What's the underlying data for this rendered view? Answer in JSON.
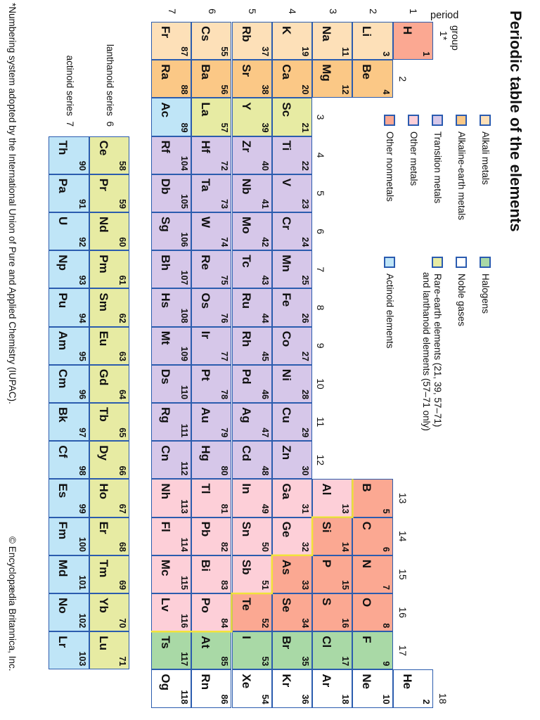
{
  "title": "Periodic table of the elements",
  "colors": {
    "alkali": "#fde0b8",
    "alkaline_earth": "#fbc886",
    "transition": "#d6c7e9",
    "other_metal": "#fdcfd8",
    "other_nonmetal": "#fba892",
    "halogen": "#a9d9a6",
    "noble_gas": "#ffffff",
    "rare_earth": "#e7eba3",
    "actinoid": "#bfe5f7",
    "border": "#2b5cae",
    "metal_line": "#f2e33a"
  },
  "legend": [
    {
      "key": "alkali",
      "label": "Alkali metals"
    },
    {
      "key": "alkaline_earth",
      "label": "Alkaline-earth metals"
    },
    {
      "key": "transition",
      "label": "Transition metals"
    },
    {
      "key": "other_metal",
      "label": "Other metals"
    },
    {
      "key": "other_nonmetal",
      "label": "Other nonmetals"
    },
    {
      "key": "halogen",
      "label": "Halogens"
    },
    {
      "key": "noble_gas",
      "label": "Noble gases"
    },
    {
      "key": "rare_earth",
      "label": "Rare-earth elements (21, 39, 57–71)",
      "label2": "and lanthanoid elements (57–71 only)"
    },
    {
      "key": "actinoid",
      "label": "Actinoid elements"
    }
  ],
  "labels": {
    "period_word": "period",
    "group_word": "group",
    "group1": "1*",
    "periods": [
      "1",
      "2",
      "3",
      "4",
      "5",
      "6",
      "7"
    ],
    "groups": [
      "1*",
      "2",
      "3",
      "4",
      "5",
      "6",
      "7",
      "8",
      "9",
      "10",
      "11",
      "12",
      "13",
      "14",
      "15",
      "16",
      "17",
      "18"
    ],
    "lanthanoid_series": "lanthanoid series",
    "lanthanoid_period": "6",
    "actinoid_series": "actinoid series",
    "actinoid_period": "7"
  },
  "footnote": "*Numbering system adopted by the International Union of Pure and Applied Chemistry (IUPAC).",
  "copyright": "© Encyclopædia Britannica, Inc.",
  "elements": [
    {
      "n": 1,
      "s": "H",
      "g": 1,
      "p": 1,
      "c": "other_nonmetal"
    },
    {
      "n": 2,
      "s": "He",
      "g": 18,
      "p": 1,
      "c": "noble_gas"
    },
    {
      "n": 3,
      "s": "Li",
      "g": 1,
      "p": 2,
      "c": "alkali"
    },
    {
      "n": 4,
      "s": "Be",
      "g": 2,
      "p": 2,
      "c": "alkaline_earth"
    },
    {
      "n": 5,
      "s": "B",
      "g": 13,
      "p": 2,
      "c": "other_nonmetal"
    },
    {
      "n": 6,
      "s": "C",
      "g": 14,
      "p": 2,
      "c": "other_nonmetal"
    },
    {
      "n": 7,
      "s": "N",
      "g": 15,
      "p": 2,
      "c": "other_nonmetal"
    },
    {
      "n": 8,
      "s": "O",
      "g": 16,
      "p": 2,
      "c": "other_nonmetal"
    },
    {
      "n": 9,
      "s": "F",
      "g": 17,
      "p": 2,
      "c": "halogen"
    },
    {
      "n": 10,
      "s": "Ne",
      "g": 18,
      "p": 2,
      "c": "noble_gas"
    },
    {
      "n": 11,
      "s": "Na",
      "g": 1,
      "p": 3,
      "c": "alkali"
    },
    {
      "n": 12,
      "s": "Mg",
      "g": 2,
      "p": 3,
      "c": "alkaline_earth"
    },
    {
      "n": 13,
      "s": "Al",
      "g": 13,
      "p": 3,
      "c": "other_metal"
    },
    {
      "n": 14,
      "s": "Si",
      "g": 14,
      "p": 3,
      "c": "other_nonmetal"
    },
    {
      "n": 15,
      "s": "P",
      "g": 15,
      "p": 3,
      "c": "other_nonmetal"
    },
    {
      "n": 16,
      "s": "S",
      "g": 16,
      "p": 3,
      "c": "other_nonmetal"
    },
    {
      "n": 17,
      "s": "Cl",
      "g": 17,
      "p": 3,
      "c": "halogen"
    },
    {
      "n": 18,
      "s": "Ar",
      "g": 18,
      "p": 3,
      "c": "noble_gas"
    },
    {
      "n": 19,
      "s": "K",
      "g": 1,
      "p": 4,
      "c": "alkali"
    },
    {
      "n": 20,
      "s": "Ca",
      "g": 2,
      "p": 4,
      "c": "alkaline_earth"
    },
    {
      "n": 21,
      "s": "Sc",
      "g": 3,
      "p": 4,
      "c": "rare_earth"
    },
    {
      "n": 22,
      "s": "Ti",
      "g": 4,
      "p": 4,
      "c": "transition"
    },
    {
      "n": 23,
      "s": "V",
      "g": 5,
      "p": 4,
      "c": "transition"
    },
    {
      "n": 24,
      "s": "Cr",
      "g": 6,
      "p": 4,
      "c": "transition"
    },
    {
      "n": 25,
      "s": "Mn",
      "g": 7,
      "p": 4,
      "c": "transition"
    },
    {
      "n": 26,
      "s": "Fe",
      "g": 8,
      "p": 4,
      "c": "transition"
    },
    {
      "n": 27,
      "s": "Co",
      "g": 9,
      "p": 4,
      "c": "transition"
    },
    {
      "n": 28,
      "s": "Ni",
      "g": 10,
      "p": 4,
      "c": "transition"
    },
    {
      "n": 29,
      "s": "Cu",
      "g": 11,
      "p": 4,
      "c": "transition"
    },
    {
      "n": 30,
      "s": "Zn",
      "g": 12,
      "p": 4,
      "c": "transition"
    },
    {
      "n": 31,
      "s": "Ga",
      "g": 13,
      "p": 4,
      "c": "other_metal"
    },
    {
      "n": 32,
      "s": "Ge",
      "g": 14,
      "p": 4,
      "c": "other_metal"
    },
    {
      "n": 33,
      "s": "As",
      "g": 15,
      "p": 4,
      "c": "other_nonmetal"
    },
    {
      "n": 34,
      "s": "Se",
      "g": 16,
      "p": 4,
      "c": "other_nonmetal"
    },
    {
      "n": 35,
      "s": "Br",
      "g": 17,
      "p": 4,
      "c": "halogen"
    },
    {
      "n": 36,
      "s": "Kr",
      "g": 18,
      "p": 4,
      "c": "noble_gas"
    },
    {
      "n": 37,
      "s": "Rb",
      "g": 1,
      "p": 5,
      "c": "alkali"
    },
    {
      "n": 38,
      "s": "Sr",
      "g": 2,
      "p": 5,
      "c": "alkaline_earth"
    },
    {
      "n": 39,
      "s": "Y",
      "g": 3,
      "p": 5,
      "c": "rare_earth"
    },
    {
      "n": 40,
      "s": "Zr",
      "g": 4,
      "p": 5,
      "c": "transition"
    },
    {
      "n": 41,
      "s": "Nb",
      "g": 5,
      "p": 5,
      "c": "transition"
    },
    {
      "n": 42,
      "s": "Mo",
      "g": 6,
      "p": 5,
      "c": "transition"
    },
    {
      "n": 43,
      "s": "Tc",
      "g": 7,
      "p": 5,
      "c": "transition"
    },
    {
      "n": 44,
      "s": "Ru",
      "g": 8,
      "p": 5,
      "c": "transition"
    },
    {
      "n": 45,
      "s": "Rh",
      "g": 9,
      "p": 5,
      "c": "transition"
    },
    {
      "n": 46,
      "s": "Pd",
      "g": 10,
      "p": 5,
      "c": "transition"
    },
    {
      "n": 47,
      "s": "Ag",
      "g": 11,
      "p": 5,
      "c": "transition"
    },
    {
      "n": 48,
      "s": "Cd",
      "g": 12,
      "p": 5,
      "c": "transition"
    },
    {
      "n": 49,
      "s": "In",
      "g": 13,
      "p": 5,
      "c": "other_metal"
    },
    {
      "n": 50,
      "s": "Sn",
      "g": 14,
      "p": 5,
      "c": "other_metal"
    },
    {
      "n": 51,
      "s": "Sb",
      "g": 15,
      "p": 5,
      "c": "other_metal"
    },
    {
      "n": 52,
      "s": "Te",
      "g": 16,
      "p": 5,
      "c": "other_nonmetal"
    },
    {
      "n": 53,
      "s": "I",
      "g": 17,
      "p": 5,
      "c": "halogen"
    },
    {
      "n": 54,
      "s": "Xe",
      "g": 18,
      "p": 5,
      "c": "noble_gas"
    },
    {
      "n": 55,
      "s": "Cs",
      "g": 1,
      "p": 6,
      "c": "alkali"
    },
    {
      "n": 56,
      "s": "Ba",
      "g": 2,
      "p": 6,
      "c": "alkaline_earth"
    },
    {
      "n": 57,
      "s": "La",
      "g": 3,
      "p": 6,
      "c": "rare_earth"
    },
    {
      "n": 72,
      "s": "Hf",
      "g": 4,
      "p": 6,
      "c": "transition"
    },
    {
      "n": 73,
      "s": "Ta",
      "g": 5,
      "p": 6,
      "c": "transition"
    },
    {
      "n": 74,
      "s": "W",
      "g": 6,
      "p": 6,
      "c": "transition"
    },
    {
      "n": 75,
      "s": "Re",
      "g": 7,
      "p": 6,
      "c": "transition"
    },
    {
      "n": 76,
      "s": "Os",
      "g": 8,
      "p": 6,
      "c": "transition"
    },
    {
      "n": 77,
      "s": "Ir",
      "g": 9,
      "p": 6,
      "c": "transition"
    },
    {
      "n": 78,
      "s": "Pt",
      "g": 10,
      "p": 6,
      "c": "transition"
    },
    {
      "n": 79,
      "s": "Au",
      "g": 11,
      "p": 6,
      "c": "transition"
    },
    {
      "n": 80,
      "s": "Hg",
      "g": 12,
      "p": 6,
      "c": "transition"
    },
    {
      "n": 81,
      "s": "Tl",
      "g": 13,
      "p": 6,
      "c": "other_metal"
    },
    {
      "n": 82,
      "s": "Pb",
      "g": 14,
      "p": 6,
      "c": "other_metal"
    },
    {
      "n": 83,
      "s": "Bi",
      "g": 15,
      "p": 6,
      "c": "other_metal"
    },
    {
      "n": 84,
      "s": "Po",
      "g": 16,
      "p": 6,
      "c": "other_metal"
    },
    {
      "n": 85,
      "s": "At",
      "g": 17,
      "p": 6,
      "c": "halogen"
    },
    {
      "n": 86,
      "s": "Rn",
      "g": 18,
      "p": 6,
      "c": "noble_gas"
    },
    {
      "n": 87,
      "s": "Fr",
      "g": 1,
      "p": 7,
      "c": "alkali"
    },
    {
      "n": 88,
      "s": "Ra",
      "g": 2,
      "p": 7,
      "c": "alkaline_earth"
    },
    {
      "n": 89,
      "s": "Ac",
      "g": 3,
      "p": 7,
      "c": "actinoid"
    },
    {
      "n": 104,
      "s": "Rf",
      "g": 4,
      "p": 7,
      "c": "transition"
    },
    {
      "n": 105,
      "s": "Db",
      "g": 5,
      "p": 7,
      "c": "transition"
    },
    {
      "n": 106,
      "s": "Sg",
      "g": 6,
      "p": 7,
      "c": "transition"
    },
    {
      "n": 107,
      "s": "Bh",
      "g": 7,
      "p": 7,
      "c": "transition"
    },
    {
      "n": 108,
      "s": "Hs",
      "g": 8,
      "p": 7,
      "c": "transition"
    },
    {
      "n": 109,
      "s": "Mt",
      "g": 9,
      "p": 7,
      "c": "transition"
    },
    {
      "n": 110,
      "s": "Ds",
      "g": 10,
      "p": 7,
      "c": "transition"
    },
    {
      "n": 111,
      "s": "Rg",
      "g": 11,
      "p": 7,
      "c": "transition"
    },
    {
      "n": 112,
      "s": "Cn",
      "g": 12,
      "p": 7,
      "c": "transition"
    },
    {
      "n": 113,
      "s": "Nh",
      "g": 13,
      "p": 7,
      "c": "other_metal"
    },
    {
      "n": 114,
      "s": "Fl",
      "g": 14,
      "p": 7,
      "c": "other_metal"
    },
    {
      "n": 115,
      "s": "Mc",
      "g": 15,
      "p": 7,
      "c": "other_metal"
    },
    {
      "n": 116,
      "s": "Lv",
      "g": 16,
      "p": 7,
      "c": "other_metal"
    },
    {
      "n": 117,
      "s": "Ts",
      "g": 17,
      "p": 7,
      "c": "halogen"
    },
    {
      "n": 118,
      "s": "Og",
      "g": 18,
      "p": 7,
      "c": "noble_gas"
    }
  ],
  "lanthanoids": [
    {
      "n": 58,
      "s": "Ce"
    },
    {
      "n": 59,
      "s": "Pr"
    },
    {
      "n": 60,
      "s": "Nd"
    },
    {
      "n": 61,
      "s": "Pm"
    },
    {
      "n": 62,
      "s": "Sm"
    },
    {
      "n": 63,
      "s": "Eu"
    },
    {
      "n": 64,
      "s": "Gd"
    },
    {
      "n": 65,
      "s": "Tb"
    },
    {
      "n": 66,
      "s": "Dy"
    },
    {
      "n": 67,
      "s": "Ho"
    },
    {
      "n": 68,
      "s": "Er"
    },
    {
      "n": 69,
      "s": "Tm"
    },
    {
      "n": 70,
      "s": "Yb"
    },
    {
      "n": 71,
      "s": "Lu"
    }
  ],
  "actinoids": [
    {
      "n": 90,
      "s": "Th"
    },
    {
      "n": 91,
      "s": "Pa"
    },
    {
      "n": 92,
      "s": "U"
    },
    {
      "n": 93,
      "s": "Np"
    },
    {
      "n": 94,
      "s": "Pu"
    },
    {
      "n": 95,
      "s": "Am"
    },
    {
      "n": 96,
      "s": "Cm"
    },
    {
      "n": 97,
      "s": "Bk"
    },
    {
      "n": 98,
      "s": "Cf"
    },
    {
      "n": 99,
      "s": "Es"
    },
    {
      "n": 100,
      "s": "Fm"
    },
    {
      "n": 101,
      "s": "Md"
    },
    {
      "n": 102,
      "s": "No"
    },
    {
      "n": 103,
      "s": "Lr"
    }
  ]
}
